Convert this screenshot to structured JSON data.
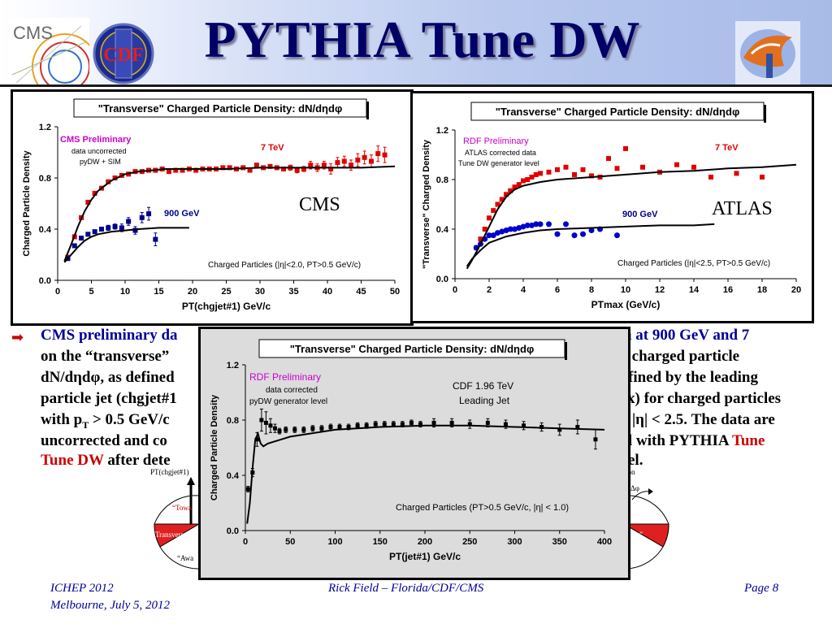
{
  "slide": {
    "title": "PYTHIA Tune DW",
    "logos": {
      "cms": "CMS",
      "cdf": "CDF"
    }
  },
  "body": {
    "line1_blue": "CMS preliminary da",
    "line1_right": "a at  900 GeV and 7",
    "line2_left": "on the “transverse”",
    "line2_right": "’ charged particle",
    "line3_left": "dN/dηdφ, as defined",
    "line3_right": "fined by the leading",
    "line4_left": "particle jet (chgjet#1",
    "line4_right": "x) for charged particles",
    "line5_left": "with p",
    "line5_sub": "T",
    "line5_left2": " > 0.5 GeV/c",
    "line5_right": "|η| < 2.5.  The data are",
    "line6_left": "uncorrected and co",
    "line6_right_a": "l with PYTHIA ",
    "line6_right_red": "Tune",
    "line7_red": "Tune DW",
    "line7_left": " after dete",
    "line7_right": "el."
  },
  "diagram": {
    "left_axis_label": "PT(chgjet#1)",
    "right_axis_label": "Δφ",
    "right_top": "ion",
    "toward": "“Towa",
    "transverse_left": "“Transverse”",
    "transverse_right": "verse”",
    "away": "“Awa"
  },
  "footer": {
    "conf": "ICHEP 2012",
    "place": "Melbourne, July 5, 2012",
    "author": "Rick Field – Florida/CDF/CMS",
    "page": "Page 8"
  },
  "colors": {
    "red": "#e00000",
    "blue": "#00008b",
    "black": "#000000",
    "title": "#000066",
    "pink": "#cc00cc"
  },
  "chart_data": [
    {
      "type": "scatter",
      "title": "\"Transverse\" Charged Particle Density: dN/dηdφ",
      "xlabel": "PT(chgjet#1) GeV/c",
      "ylabel": "Charged Particle Density",
      "xlim": [
        0,
        50
      ],
      "ylim": [
        0,
        1.2
      ],
      "xticks": [
        "0",
        "5",
        "10",
        "15",
        "20",
        "25",
        "30",
        "35",
        "40",
        "45",
        "50"
      ],
      "yticks": [
        "0.0",
        "0.4",
        "0.8",
        "1.2"
      ],
      "annotations": {
        "prelim": "CMS Preliminary",
        "note1": "data uncorrected",
        "note2": "pyDW + SIM",
        "label_7tev": "7 TeV",
        "label_900": "900 GeV",
        "experiment": "CMS",
        "cuts": "Charged Particles (|η|<2.0, PT>0.5 GeV/c)"
      },
      "series": [
        {
          "name": "7 TeV",
          "color": "#e00000",
          "x": [
            1.5,
            2.5,
            3.5,
            4.5,
            5.5,
            6.5,
            7.5,
            8.5,
            9.5,
            10.5,
            11.5,
            12.5,
            13.5,
            14.5,
            15.5,
            16.5,
            17.5,
            18.5,
            19.5,
            20.5,
            21.5,
            22.5,
            23.5,
            24.5,
            25.5,
            26.5,
            27.5,
            28.5,
            29.5,
            30.5,
            31.5,
            32.5,
            33.5,
            34.5,
            35.5,
            36.5,
            37.5,
            38.5,
            39.5,
            40.5,
            41.5,
            42.5,
            43.5,
            44.5,
            45.5,
            46.5,
            47.5,
            48.5
          ],
          "y": [
            0.18,
            0.34,
            0.49,
            0.61,
            0.68,
            0.72,
            0.77,
            0.8,
            0.82,
            0.83,
            0.85,
            0.85,
            0.86,
            0.86,
            0.87,
            0.85,
            0.86,
            0.86,
            0.87,
            0.86,
            0.87,
            0.87,
            0.87,
            0.88,
            0.88,
            0.87,
            0.88,
            0.86,
            0.9,
            0.88,
            0.89,
            0.88,
            0.87,
            0.88,
            0.86,
            0.87,
            0.9,
            0.88,
            0.9,
            0.87,
            0.92,
            0.93,
            0.9,
            0.94,
            0.96,
            0.93,
            0.99,
            0.98
          ],
          "err": [
            0,
            0,
            0,
            0,
            0,
            0,
            0,
            0,
            0,
            0,
            0,
            0,
            0,
            0,
            0,
            0,
            0,
            0,
            0,
            0,
            0,
            0,
            0,
            0,
            0,
            0,
            0,
            0,
            0,
            0,
            0,
            0,
            0,
            0.02,
            0.02,
            0.02,
            0.03,
            0.03,
            0.03,
            0.04,
            0.04,
            0.04,
            0.04,
            0.05,
            0.05,
            0.05,
            0.06,
            0.06
          ]
        },
        {
          "name": "900 GeV",
          "color": "#00008b",
          "x": [
            1.5,
            2.5,
            3.5,
            4.5,
            5.5,
            6.5,
            7.5,
            8.5,
            9.5,
            10.5,
            11.5,
            12.5,
            13.5,
            14.5
          ],
          "y": [
            0.17,
            0.27,
            0.33,
            0.36,
            0.38,
            0.4,
            0.41,
            0.42,
            0.41,
            0.46,
            0.39,
            0.49,
            0.52,
            0.32
          ],
          "err": [
            0,
            0,
            0,
            0,
            0.01,
            0.01,
            0.02,
            0.02,
            0.03,
            0.03,
            0.03,
            0.04,
            0.05,
            0.05
          ]
        },
        {
          "name": "pyDW + SIM 7 TeV",
          "color": "#000000",
          "line": true,
          "x": [
            1,
            2,
            3,
            4,
            5,
            6,
            8,
            10,
            12,
            14,
            16,
            20,
            25,
            30,
            35,
            40,
            45,
            50
          ],
          "y": [
            0.15,
            0.28,
            0.42,
            0.54,
            0.63,
            0.7,
            0.78,
            0.83,
            0.85,
            0.86,
            0.87,
            0.87,
            0.87,
            0.88,
            0.88,
            0.88,
            0.88,
            0.89
          ]
        },
        {
          "name": "pyDW + SIM 900 GeV",
          "color": "#000000",
          "line": true,
          "x": [
            1,
            2,
            3,
            4,
            5,
            6,
            8,
            10,
            12,
            15,
            19.5
          ],
          "y": [
            0.14,
            0.2,
            0.26,
            0.31,
            0.34,
            0.36,
            0.38,
            0.39,
            0.4,
            0.41,
            0.41
          ]
        }
      ]
    },
    {
      "type": "scatter",
      "title": "\"Transverse\" Charged Particle Density: dN/dηdφ",
      "xlabel": "PTmax  (GeV/c)",
      "ylabel": "\"Transverse\" Charged Density",
      "xlim": [
        0,
        20
      ],
      "ylim": [
        0,
        1.2
      ],
      "xticks": [
        "0",
        "2",
        "4",
        "6",
        "8",
        "10",
        "12",
        "14",
        "16",
        "18",
        "20"
      ],
      "yticks": [
        "0.0",
        "0.4",
        "0.8",
        "1.2"
      ],
      "annotations": {
        "prelim": "RDF Preliminary",
        "note1": "ATLAS corrected data",
        "note2": "Tune DW generator level",
        "label_7tev": "7 TeV",
        "label_900": "900 GeV",
        "experiment": "ATLAS",
        "cuts": "Charged Particles (|η|<2.5, PT>0.5 GeV/c)"
      },
      "series": [
        {
          "name": "7 TeV",
          "color": "#e00000",
          "x": [
            1.25,
            1.5,
            1.75,
            2.0,
            2.25,
            2.5,
            2.75,
            3.0,
            3.25,
            3.5,
            3.75,
            4.0,
            4.25,
            4.5,
            4.75,
            5.0,
            5.5,
            6.0,
            6.5,
            7.0,
            7.5,
            8.0,
            8.5,
            9.0,
            9.5,
            10.0,
            11.0,
            12.0,
            13.0,
            14.0,
            15.0,
            16.5,
            18.0
          ],
          "y": [
            0.25,
            0.32,
            0.4,
            0.49,
            0.55,
            0.6,
            0.64,
            0.68,
            0.71,
            0.74,
            0.76,
            0.79,
            0.8,
            0.82,
            0.84,
            0.85,
            0.86,
            0.88,
            0.9,
            0.84,
            0.88,
            0.83,
            0.82,
            0.97,
            0.89,
            1.05,
            0.9,
            0.86,
            0.92,
            0.9,
            0.82,
            0.85,
            0.82
          ]
        },
        {
          "name": "900 GeV",
          "color": "#0000cc",
          "x": [
            1.25,
            1.5,
            1.75,
            2.0,
            2.25,
            2.5,
            2.75,
            3.0,
            3.25,
            3.5,
            3.75,
            4.0,
            4.25,
            4.5,
            4.75,
            5.0,
            5.5,
            6.0,
            6.5,
            7.0,
            7.5,
            8.0,
            8.5,
            9.5
          ],
          "y": [
            0.25,
            0.28,
            0.32,
            0.35,
            0.35,
            0.37,
            0.38,
            0.39,
            0.4,
            0.4,
            0.41,
            0.42,
            0.43,
            0.43,
            0.44,
            0.44,
            0.44,
            0.36,
            0.44,
            0.35,
            0.36,
            0.39,
            0.4,
            0.35
          ]
        },
        {
          "name": "Tune DW 7 TeV",
          "color": "#000000",
          "line": true,
          "x": [
            0.7,
            1,
            1.5,
            2,
            2.5,
            3,
            3.5,
            4,
            5,
            6,
            8,
            10,
            12,
            14,
            16,
            18,
            20
          ],
          "y": [
            0.08,
            0.15,
            0.28,
            0.42,
            0.56,
            0.66,
            0.72,
            0.75,
            0.78,
            0.8,
            0.82,
            0.84,
            0.86,
            0.87,
            0.89,
            0.9,
            0.92
          ]
        },
        {
          "name": "Tune DW 900 GeV",
          "color": "#000000",
          "line": true,
          "x": [
            0.7,
            1,
            1.5,
            2,
            3,
            4,
            5,
            6,
            8,
            10,
            12,
            14,
            15.2
          ],
          "y": [
            0.1,
            0.16,
            0.23,
            0.29,
            0.34,
            0.37,
            0.39,
            0.4,
            0.41,
            0.42,
            0.43,
            0.43,
            0.44
          ]
        }
      ]
    },
    {
      "type": "scatter",
      "title": "\"Transverse\" Charged Particle Density: dN/dηdφ",
      "xlabel": "PT(jet#1) GeV/c",
      "ylabel": "Charged Particle Density",
      "xlim": [
        0,
        400
      ],
      "ylim": [
        0,
        1.2
      ],
      "xticks": [
        "0",
        "50",
        "100",
        "150",
        "200",
        "250",
        "300",
        "350",
        "400"
      ],
      "yticks": [
        "0.0",
        "0.4",
        "0.8",
        "1.2"
      ],
      "annotations": {
        "prelim": "RDF Preliminary",
        "note1": "data corrected",
        "note2": "pyDW generator level",
        "exp1": "CDF 1.96 TeV",
        "exp2": "Leading Jet",
        "cuts": "Charged Particles (PT>0.5 GeV/c, |η| < 1.0)"
      },
      "series": [
        {
          "name": "CDF data",
          "color": "#000000",
          "x": [
            3,
            8,
            13,
            18,
            23,
            28,
            33,
            38,
            45,
            55,
            65,
            75,
            85,
            95,
            105,
            115,
            125,
            135,
            145,
            155,
            165,
            175,
            185,
            195,
            210,
            230,
            250,
            270,
            290,
            310,
            330,
            350,
            370,
            390
          ],
          "y": [
            0.3,
            0.42,
            0.66,
            0.8,
            0.78,
            0.76,
            0.74,
            0.72,
            0.73,
            0.73,
            0.73,
            0.74,
            0.74,
            0.75,
            0.75,
            0.75,
            0.76,
            0.76,
            0.77,
            0.77,
            0.77,
            0.77,
            0.78,
            0.77,
            0.78,
            0.78,
            0.77,
            0.78,
            0.77,
            0.76,
            0.75,
            0.73,
            0.75,
            0.66
          ],
          "err": [
            0.02,
            0.03,
            0.05,
            0.08,
            0.08,
            0.05,
            0.03,
            0.02,
            0.02,
            0.02,
            0.02,
            0.02,
            0.02,
            0.02,
            0.02,
            0.02,
            0.02,
            0.02,
            0.02,
            0.02,
            0.02,
            0.02,
            0.02,
            0.02,
            0.03,
            0.03,
            0.03,
            0.03,
            0.03,
            0.03,
            0.03,
            0.04,
            0.05,
            0.07
          ]
        },
        {
          "name": "pyDW",
          "color": "#000000",
          "line": true,
          "x": [
            2,
            5,
            8,
            11,
            14,
            17,
            20,
            25,
            30,
            40,
            50,
            70,
            100,
            150,
            200,
            250,
            300,
            350,
            400
          ],
          "y": [
            0.05,
            0.2,
            0.45,
            0.66,
            0.7,
            0.63,
            0.61,
            0.63,
            0.64,
            0.66,
            0.68,
            0.7,
            0.73,
            0.75,
            0.76,
            0.76,
            0.75,
            0.74,
            0.73
          ]
        }
      ]
    }
  ]
}
